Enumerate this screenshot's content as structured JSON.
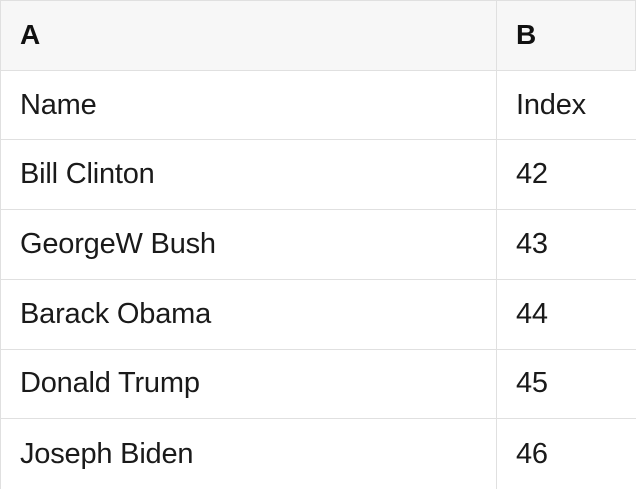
{
  "table": {
    "column_headers": [
      {
        "label": "A"
      },
      {
        "label": "B"
      }
    ],
    "rows": [
      {
        "a": "Name",
        "b": "Index"
      },
      {
        "a": "Bill Clinton",
        "b": "42"
      },
      {
        "a": "GeorgeW Bush",
        "b": "43"
      },
      {
        "a": "Barack Obama",
        "b": "44"
      },
      {
        "a": "Donald Trump",
        "b": "45"
      },
      {
        "a": "Joseph Biden",
        "b": "46"
      }
    ],
    "colors": {
      "header_background": "#f7f7f7",
      "border": "#e0e0e0",
      "text": "#1a1a1a"
    }
  }
}
